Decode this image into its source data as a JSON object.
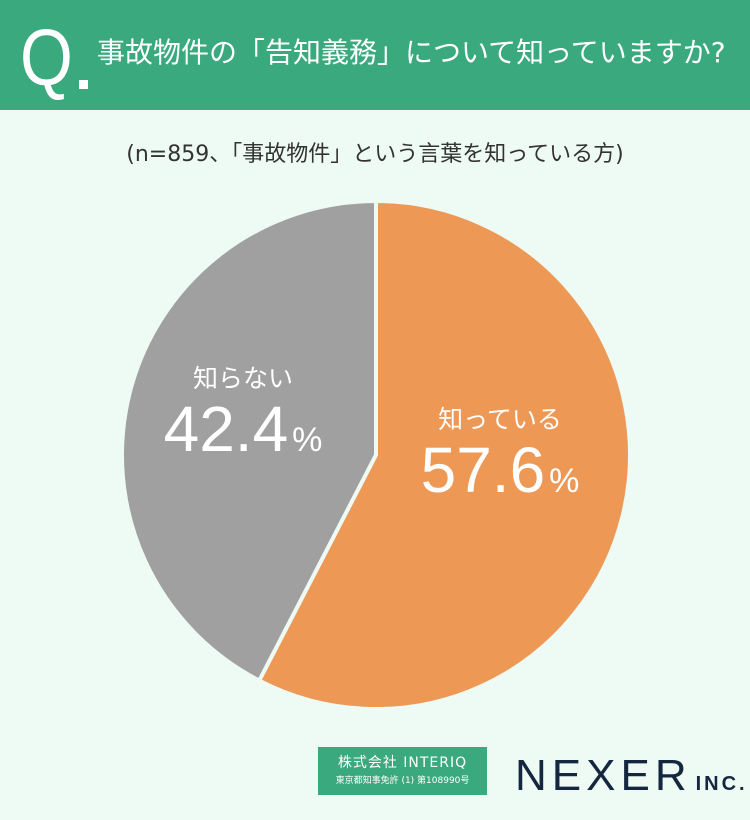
{
  "header": {
    "q_label": "Q",
    "question": "事故物件の「告知義務」について知っていますか?",
    "bg_color": "#3aa97e"
  },
  "subtitle": "(n=859、「事故物件」という言葉を知っている方)",
  "chart_data": {
    "type": "pie",
    "title": "事故物件の「告知義務」について知っていますか?",
    "subtitle": "(n=859、「事故物件」という言葉を知っている方)",
    "n": 859,
    "categories": [
      "知っている",
      "知らない"
    ],
    "values": [
      57.6,
      42.4
    ],
    "unit": "%",
    "colors": [
      "#ee9855",
      "#a0a0a0"
    ],
    "start_angle": "12 o'clock, clockwise",
    "legend": "none (labels on slices)"
  },
  "labels": {
    "yes": {
      "name": "知っている",
      "value": "57.6",
      "unit": "%"
    },
    "no": {
      "name": "知らない",
      "value": "42.4",
      "unit": "%"
    }
  },
  "footer": {
    "interiq_line1": "株式会社 INTERIQ",
    "interiq_line2": "東京都知事免許 (1) 第108990号",
    "nexer_main": "NEXER",
    "nexer_suffix": "INC."
  }
}
